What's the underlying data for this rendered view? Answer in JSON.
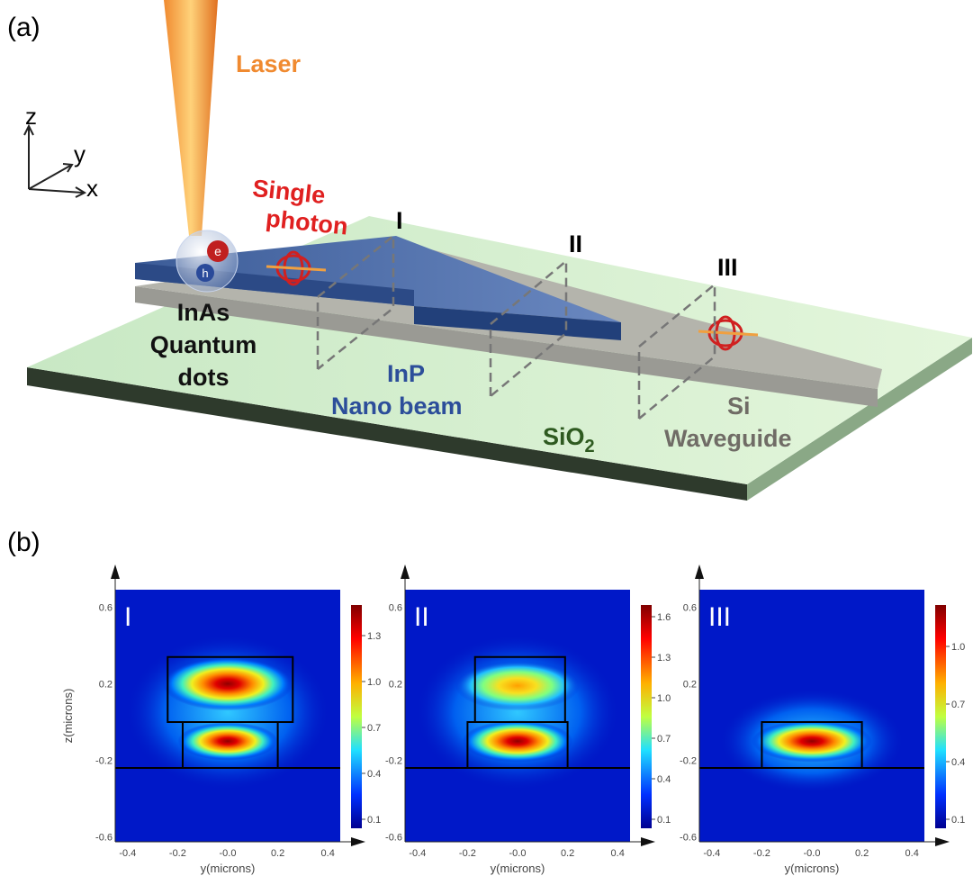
{
  "panel_a": {
    "label": "(a)",
    "axes": {
      "z": "z",
      "y": "y",
      "x": "x"
    },
    "laser": "Laser",
    "single_photon": [
      "Single",
      "photon"
    ],
    "planes": [
      "I",
      "II",
      "III"
    ],
    "dot_labels": {
      "electron": "e",
      "hole": "h"
    },
    "quantum_dots": [
      "InAs",
      "Quantum",
      "dots"
    ],
    "nanobeam": [
      "InP",
      "Nano beam"
    ],
    "substrate": {
      "text": "SiO",
      "subscript": "2"
    },
    "waveguide": [
      "Si",
      "Waveguide"
    ]
  },
  "panel_b": {
    "label": "(b)",
    "y_axis_title": "z(microns)",
    "plots": [
      {
        "label": "I",
        "x_axis_title": "y(microns)",
        "xticks": [
          "-0.4",
          "-0.2",
          "-0.0",
          "0.2",
          "0.4"
        ],
        "yticks": [
          "0.6",
          "0.2",
          "-0.2",
          "-0.6"
        ],
        "colorbar_ticks": [
          "1.3",
          "1.0",
          "0.7",
          "0.4",
          "0.1"
        ]
      },
      {
        "label": "II",
        "x_axis_title": "y(microns)",
        "xticks": [
          "-0.4",
          "-0.2",
          "-0.0",
          "0.2",
          "0.4"
        ],
        "yticks": [
          "0.6",
          "0.2",
          "-0.2",
          "-0.6"
        ],
        "colorbar_ticks": [
          "1.6",
          "1.3",
          "1.0",
          "0.7",
          "0.4",
          "0.1"
        ]
      },
      {
        "label": "III",
        "x_axis_title": "y(microns)",
        "xticks": [
          "-0.4",
          "-0.2",
          "-0.0",
          "0.2",
          "0.4"
        ],
        "yticks": [
          "0.6",
          "0.2",
          "-0.2",
          "-0.6"
        ],
        "colorbar_ticks": [
          "1.0",
          "0.7",
          "0.4",
          "0.1"
        ]
      }
    ]
  }
}
